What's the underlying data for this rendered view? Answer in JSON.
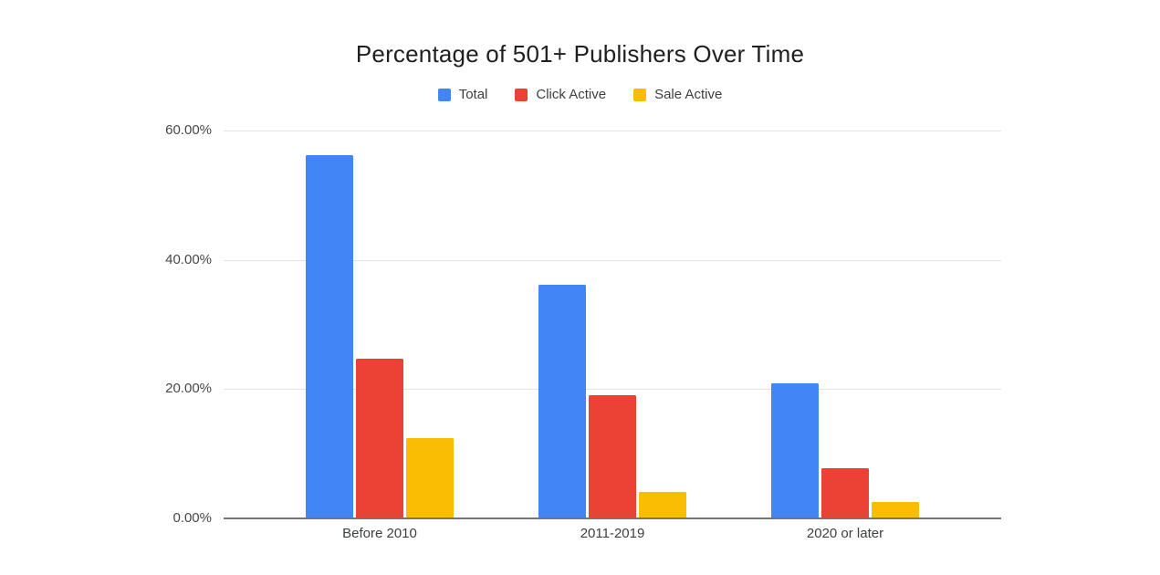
{
  "chart_data": {
    "type": "bar",
    "title": "Percentage of 501+ Publishers Over Time",
    "categories": [
      "Before 2010",
      "2011-2019",
      "2020 or later"
    ],
    "series": [
      {
        "name": "Total",
        "color": "#4285F4",
        "values": [
          56.2,
          36.1,
          20.9
        ]
      },
      {
        "name": "Click Active",
        "color": "#EA4335",
        "values": [
          24.7,
          19.1,
          7.7
        ]
      },
      {
        "name": "Sale Active",
        "color": "#FBBC04",
        "values": [
          12.4,
          4.1,
          2.5
        ]
      }
    ],
    "xlabel": "",
    "ylabel": "",
    "ylim": [
      0,
      60
    ],
    "yticks": [
      {
        "value": 60,
        "label": "60.00%"
      },
      {
        "value": 40,
        "label": "40.00%"
      },
      {
        "value": 20,
        "label": "20.00%"
      },
      {
        "value": 0,
        "label": "0.00%"
      }
    ],
    "grid": true,
    "legend_position": "top"
  },
  "colors": {
    "background": "#ffffff",
    "gridline": "#e3e3e3",
    "axis_line": "#757575",
    "title_text": "#1f1f1f",
    "tick_text": "#474747",
    "legend_text": "#3c4043"
  }
}
